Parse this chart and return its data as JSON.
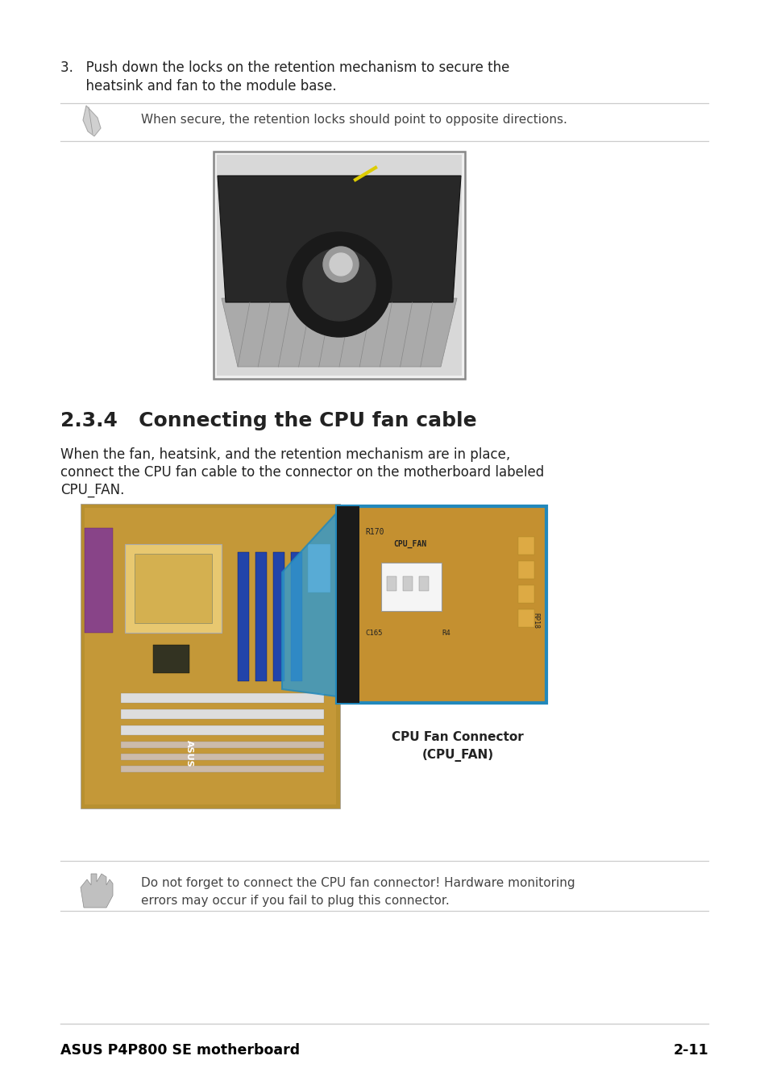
{
  "bg_color": "#ffffff",
  "step3_line1": "3.   Push down the locks on the retention mechanism to secure the",
  "step3_line2": "      heatsink and fan to the module base.",
  "note1_text": "When secure, the retention locks should point to opposite directions.",
  "section_title": "2.3.4   Connecting the CPU fan cable",
  "body_line1": "When the fan, heatsink, and the retention mechanism are in place,",
  "body_line2": "connect the CPU fan cable to the connector on the motherboard labeled",
  "body_line3": "CPU_FAN.",
  "caption_line1": "CPU Fan Connector",
  "caption_line2": "(CPU_FAN)",
  "note2_line1": "Do not forget to connect the CPU fan connector! Hardware monitoring",
  "note2_line2": "errors may occur if you fail to plug this connector.",
  "footer_left": "ASUS P4P800 SE motherboard",
  "footer_right": "2-11",
  "sep_color": "#cccccc",
  "text_color": "#222222",
  "light_text": "#444444",
  "footer_color": "#000000",
  "blue_arrow": "#3399cc",
  "blue_border": "#2288bb"
}
